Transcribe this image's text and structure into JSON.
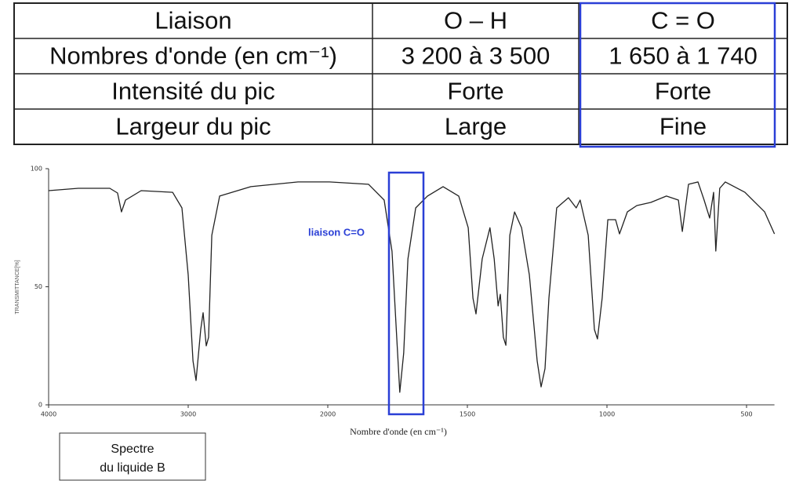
{
  "table": {
    "rows": [
      [
        "Liaison",
        "O – H",
        "C = O"
      ],
      [
        "Nombres d'onde (en cm⁻¹)",
        "3 200 à 3 500",
        "1 650 à 1 740"
      ],
      [
        "Intensité du pic",
        "Forte",
        "Forte"
      ],
      [
        "Largeur du pic",
        "Large",
        "Fine"
      ]
    ]
  },
  "chart_data": {
    "type": "line",
    "x_label": "Nombre d'onde (en cm⁻¹)",
    "y_label": "TRANSMITTANCE[%]",
    "annotation": "liaison C=O",
    "color": "#222222",
    "xlim": [
      4000,
      400
    ],
    "xticks": [
      4000,
      3000,
      2000,
      1500,
      1000,
      500
    ],
    "ylim": [
      0,
      100
    ],
    "yticks": [
      0,
      50,
      100
    ],
    "x": [
      4000,
      3787,
      3562,
      3506,
      3478,
      3449,
      3337,
      3112,
      3045,
      3000,
      2966,
      2944,
      2910,
      2893,
      2871,
      2854,
      2831,
      2775,
      2551,
      2213,
      1994,
      1854,
      1798,
      1770,
      1753,
      1742,
      1728,
      1713,
      1685,
      1643,
      1587,
      1531,
      1497,
      1480,
      1469,
      1447,
      1419,
      1404,
      1390,
      1382,
      1371,
      1362,
      1348,
      1331,
      1306,
      1278,
      1250,
      1236,
      1222,
      1208,
      1180,
      1138,
      1110,
      1096,
      1067,
      1045,
      1034,
      1017,
      997,
      969,
      955,
      927,
      893,
      843,
      787,
      744,
      730,
      708,
      674,
      652,
      632,
      618,
      610,
      596,
      576,
      506,
      435,
      400
    ],
    "values": [
      90.7,
      91.7,
      91.7,
      89.7,
      81.7,
      86.7,
      90.7,
      90,
      83.4,
      55,
      18.6,
      10.3,
      32,
      39,
      25,
      28.6,
      71.8,
      88.4,
      92.4,
      94.4,
      94.4,
      93.4,
      86.7,
      65,
      28.6,
      5.3,
      21.9,
      61.8,
      83.4,
      88.4,
      92.4,
      88.4,
      75,
      45.2,
      38.5,
      61.8,
      75,
      61.8,
      41.9,
      46.8,
      28.6,
      25.2,
      71.8,
      81.7,
      75,
      55.1,
      18.6,
      7.6,
      15.3,
      45.2,
      83.4,
      87.7,
      83.4,
      86.7,
      71.8,
      31.9,
      27.9,
      45.2,
      78.4,
      78.4,
      72.4,
      81.7,
      84.4,
      85.7,
      88.4,
      86.7,
      73.4,
      93.4,
      94.4,
      86.7,
      79.1,
      90,
      65.1,
      91.7,
      94.4,
      90,
      81.7,
      72.4
    ]
  },
  "caption": [
    "Spectre",
    "du liquide B"
  ]
}
